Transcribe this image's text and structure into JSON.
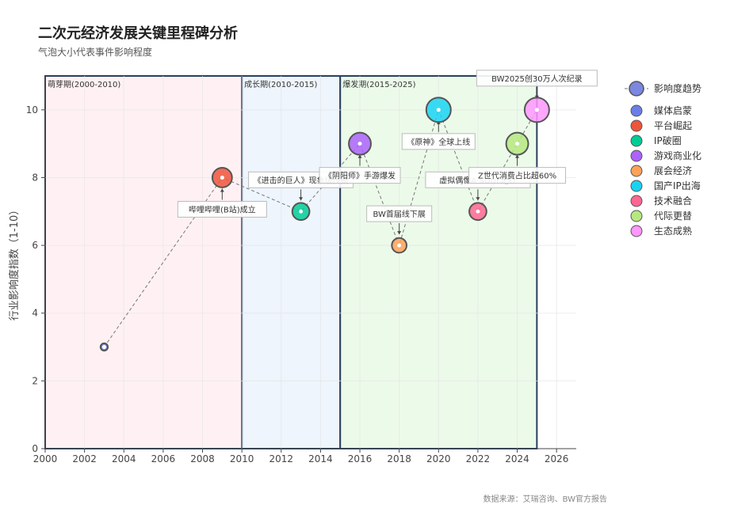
{
  "chart_data": {
    "type": "scatter",
    "title": "二次元经济发展关键里程碑分析",
    "subtitle": "气泡大小代表事件影响程度",
    "ylabel": "行业影响度指数（1-10）",
    "xlabel": "",
    "xlim": [
      2000,
      2027
    ],
    "ylim": [
      0,
      11
    ],
    "x_ticks": [
      2000,
      2002,
      2004,
      2006,
      2008,
      2010,
      2012,
      2014,
      2016,
      2018,
      2020,
      2022,
      2024,
      2026
    ],
    "y_ticks": [
      0,
      2,
      4,
      6,
      8,
      10
    ],
    "grid": true,
    "periods": [
      {
        "label": "萌芽期(2000-2010)",
        "start": 2000,
        "end": 2010,
        "color": "#fff1f3"
      },
      {
        "label": "成长期(2010-2015)",
        "start": 2010,
        "end": 2015,
        "color": "#eef5fc"
      },
      {
        "label": "爆发期(2015-2025)",
        "start": 2015,
        "end": 2025,
        "color": "#ecfaea"
      }
    ],
    "trend": {
      "name": "影响度趋势",
      "color": "#7b87e0"
    },
    "series": [
      {
        "name": "媒体启蒙",
        "color": "#6b7ee8",
        "x": 2003,
        "y": 3
      },
      {
        "name": "平台崛起",
        "color": "#ef553b",
        "x": 2009,
        "y": 8
      },
      {
        "name": "IP破圈",
        "color": "#00cc96",
        "x": 2013,
        "y": 7
      },
      {
        "name": "游戏商业化",
        "color": "#ab63fa",
        "x": 2016,
        "y": 9
      },
      {
        "name": "展会经济",
        "color": "#ffa15a",
        "x": 2018,
        "y": 6
      },
      {
        "name": "国产IP出海",
        "color": "#19d3f3",
        "x": 2020,
        "y": 10
      },
      {
        "name": "技术融合",
        "color": "#ff6692",
        "x": 2022,
        "y": 7
      },
      {
        "name": "代际更替",
        "color": "#b6e880",
        "x": 2024,
        "y": 9
      },
      {
        "name": "生态成熟",
        "color": "#ff97ff",
        "x": 2025,
        "y": 10
      }
    ],
    "annotations": [
      {
        "text": "哔哩哔哩(B站)成立",
        "x": 2009,
        "y": 8
      },
      {
        "text": "《进击的巨人》现象级传播",
        "x": 2013,
        "y": 7
      },
      {
        "text": "《阴阳师》手游爆发",
        "x": 2016,
        "y": 9
      },
      {
        "text": "BW首届线下展",
        "x": 2018,
        "y": 6
      },
      {
        "text": "《原神》全球上线",
        "x": 2020,
        "y": 10
      },
      {
        "text": "虚拟偶像A-SOUL走红",
        "x": 2022,
        "y": 7
      },
      {
        "text": "Z世代消费占比超60%",
        "x": 2024,
        "y": 9
      },
      {
        "text": "BW2025创30万人次纪录",
        "x": 2025,
        "y": 10
      }
    ],
    "source": "数据来源：艾瑞咨询、BW官方报告"
  }
}
